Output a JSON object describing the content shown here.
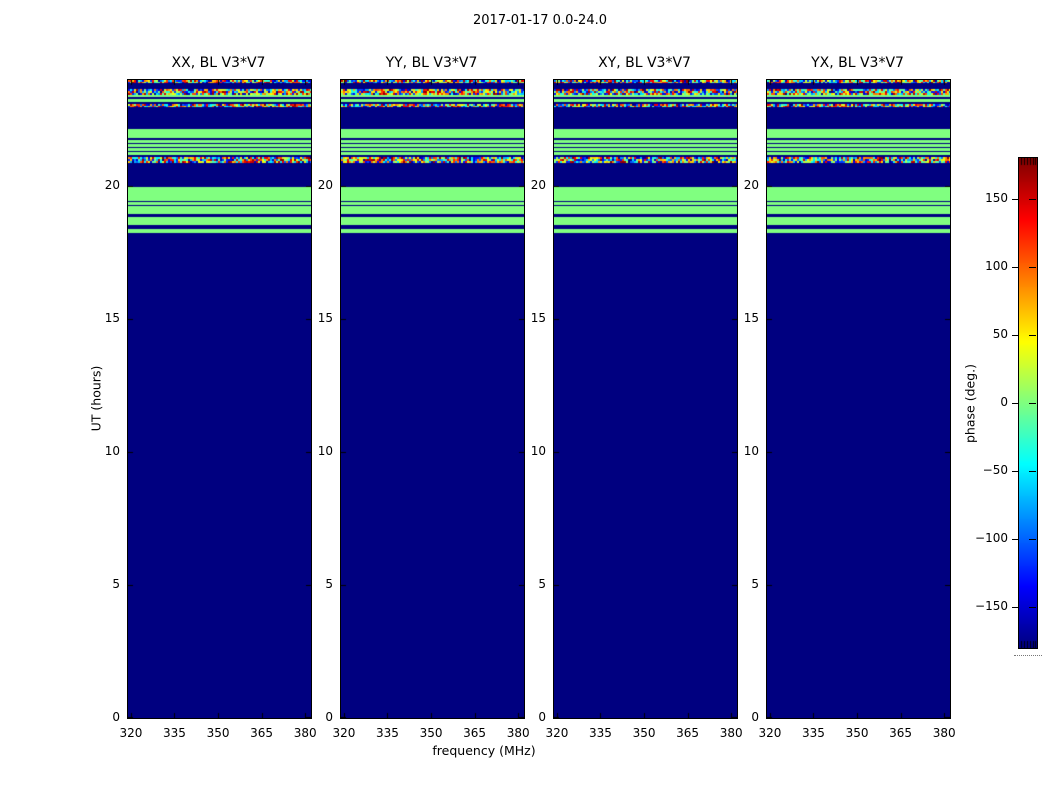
{
  "figure": {
    "suptitle": "2017-01-17 0.0-24.0",
    "background": "#ffffff"
  },
  "chart_data": {
    "type": "heatmap",
    "title": "2017-01-17 0.0-24.0",
    "panels": [
      {
        "title": "XX, BL V3*V7"
      },
      {
        "title": "YY, BL V3*V7"
      },
      {
        "title": "XY, BL V3*V7"
      },
      {
        "title": "YX, BL V3*V7"
      }
    ],
    "xlabel": "frequency (MHz)",
    "ylabel": "UT (hours)",
    "x_range": [
      319,
      382
    ],
    "y_range": [
      0,
      24
    ],
    "x_ticks": [
      320,
      335,
      350,
      365,
      380
    ],
    "y_ticks": [
      0,
      5,
      10,
      15,
      20
    ],
    "colorbar": {
      "label": "phase (deg.)",
      "range": [
        -180,
        180
      ],
      "ticks": [
        150,
        100,
        50,
        0,
        -50,
        -100,
        -150
      ],
      "colormap": "jet"
    },
    "background_phase": -180,
    "bands": [
      [
        23.89,
        24.0,
        "noise"
      ],
      [
        23.66,
        23.89,
        -180
      ],
      [
        23.44,
        23.66,
        "noise"
      ],
      [
        23.36,
        23.44,
        0
      ],
      [
        23.29,
        23.36,
        -180
      ],
      [
        23.17,
        23.29,
        0
      ],
      [
        23.1,
        23.17,
        -180
      ],
      [
        22.99,
        23.1,
        "noise"
      ],
      [
        22.16,
        22.99,
        -180
      ],
      [
        21.82,
        22.16,
        0
      ],
      [
        21.75,
        21.82,
        -180
      ],
      [
        21.3,
        21.75,
        "stripes"
      ],
      [
        21.18,
        21.3,
        0
      ],
      [
        21.11,
        21.18,
        -180
      ],
      [
        20.88,
        21.11,
        "noise"
      ],
      [
        19.97,
        20.88,
        -180
      ],
      [
        19.56,
        19.97,
        0
      ],
      [
        19.18,
        19.56,
        "stripes"
      ],
      [
        18.96,
        19.18,
        0
      ],
      [
        18.85,
        18.96,
        -180
      ],
      [
        18.54,
        18.85,
        0
      ],
      [
        18.39,
        18.54,
        -180
      ],
      [
        18.24,
        18.39,
        0
      ]
    ],
    "band_note": "Below UT 18.24 h the phase is uniformly -180 deg; the same band pattern appears in all four panels"
  },
  "colors": {
    "navy": "#000080",
    "green": "#80ff80",
    "axis": "#000000",
    "text": "#000000"
  }
}
